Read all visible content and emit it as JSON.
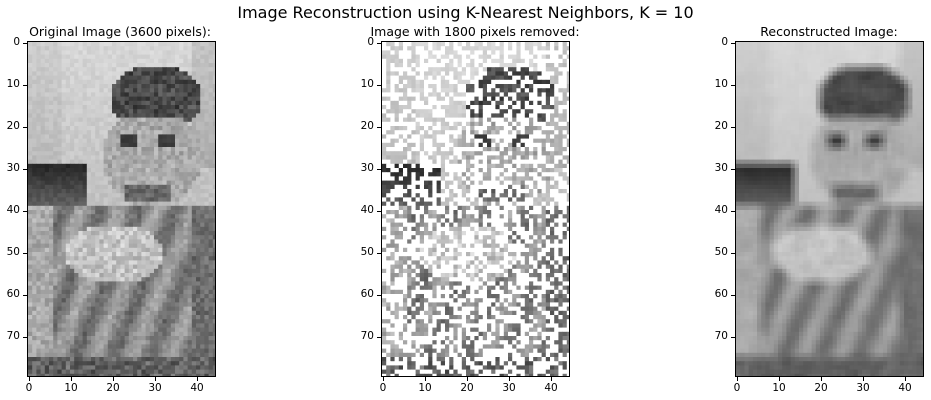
{
  "figure": {
    "suptitle": "Image Reconstruction using K-Nearest Neighbors, K = 10"
  },
  "panels": [
    {
      "title": "Original Image (3600 pixels):",
      "image": "original grayscale photo of a smiling man holding food",
      "yticks": [
        "0",
        "10",
        "20",
        "30",
        "40",
        "50",
        "60",
        "70"
      ],
      "xticks": [
        "0",
        "10",
        "20",
        "30",
        "40"
      ]
    },
    {
      "title": "Image with 1800 pixels removed:",
      "image": "same photo with half of the pixels removed (shown white)",
      "yticks": [
        "0",
        "10",
        "20",
        "30",
        "40",
        "50",
        "60",
        "70"
      ],
      "xticks": [
        "0",
        "10",
        "20",
        "30",
        "40"
      ]
    },
    {
      "title": "Reconstructed Image:",
      "image": "photo reconstructed by K-nearest-neighbor interpolation",
      "yticks": [
        "0",
        "10",
        "20",
        "30",
        "40",
        "50",
        "60",
        "70"
      ],
      "xticks": [
        "0",
        "10",
        "20",
        "30",
        "40"
      ]
    }
  ],
  "colors": {
    "background": "#ffffff",
    "axis": "#000000"
  }
}
